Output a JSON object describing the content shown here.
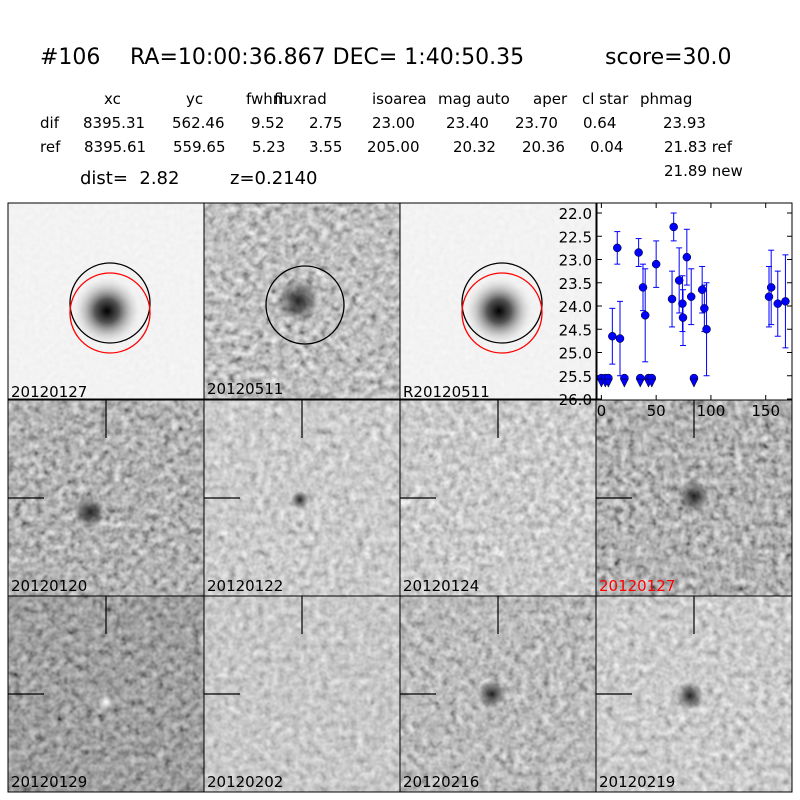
{
  "header": {
    "id": "#106",
    "coords": "RA=10:00:36.867 DEC= 1:40:50.35",
    "score": "score=30.0"
  },
  "table": {
    "columns": [
      "xc",
      "yc",
      "fwhm",
      "fluxrad",
      "isoarea",
      "mag auto",
      "aper",
      "cl star",
      "phmag"
    ],
    "rows": [
      [
        "dif",
        "8395.31",
        "562.46",
        "9.52",
        "2.75",
        "23.00",
        "23.40",
        "23.70",
        "0.64",
        "23.93"
      ],
      [
        "ref",
        "8395.61",
        "559.65",
        "5.23",
        "3.55",
        "205.00",
        "20.32",
        "20.36",
        "0.04",
        "21.83 ref"
      ]
    ],
    "extra": "21.89 new"
  },
  "summary": {
    "dist": "dist=  2.82",
    "z": "z=0.2140"
  },
  "stamps": {
    "top": [
      "20120127",
      "20120511",
      "R20120511"
    ],
    "epochs": [
      "20120120",
      "20120122",
      "20120124",
      "20120127",
      "20120129",
      "20120202",
      "20120216",
      "20120219"
    ]
  },
  "chart_data": {
    "type": "scatter",
    "color": "#0000ff",
    "x": [
      10,
      14.5,
      17,
      34,
      38,
      40,
      50,
      64.5,
      66,
      71,
      74,
      74.5,
      78,
      82,
      92,
      94,
      96,
      153,
      155,
      161,
      168
    ],
    "values": [
      24.65,
      22.75,
      24.7,
      22.85,
      23.6,
      24.2,
      23.1,
      23.85,
      22.3,
      23.45,
      23.95,
      24.25,
      22.95,
      23.8,
      23.65,
      24.05,
      24.5,
      23.8,
      23.6,
      23.95,
      23.9
    ],
    "errors": [
      0.6,
      0.35,
      0.8,
      0.3,
      0.5,
      1.0,
      0.5,
      0.6,
      0.3,
      0.7,
      0.6,
      0.6,
      0.6,
      0.6,
      0.5,
      0.5,
      1.0,
      0.65,
      0.8,
      0.7,
      1.0
    ],
    "limits_x": [
      0,
      3.6,
      6.4,
      21,
      35.5,
      43,
      46,
      84.5
    ],
    "limits": [
      25.55,
      25.55,
      25.55,
      25.55,
      25.55,
      25.55,
      25.55,
      25.55
    ],
    "xlim": [
      -4,
      174
    ],
    "ylim": [
      22.0,
      26.0
    ],
    "y_inverted": true,
    "xticks": [
      0,
      50,
      100,
      150
    ],
    "yticks": [
      {
        "value": 22,
        "label": "22.0"
      },
      22.5,
      {
        "value": 23,
        "label": "23.0"
      },
      23.5,
      {
        "value": 24,
        "label": "24.0"
      },
      24.5,
      {
        "value": 25,
        "label": "25.0"
      },
      25.5,
      {
        "value": 26,
        "label": "26.0"
      }
    ]
  }
}
